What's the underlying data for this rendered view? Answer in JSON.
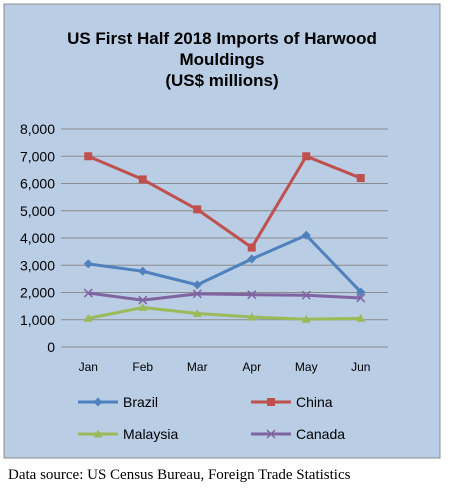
{
  "chart_data": {
    "type": "line",
    "title_lines": [
      "US First Half 2018 Imports of Harwood",
      "Mouldings",
      "(US$ millions)"
    ],
    "categories": [
      "Jan",
      "Feb",
      "Mar",
      "Apr",
      "May",
      "Jun"
    ],
    "ylim": [
      0,
      8000
    ],
    "yticks": [
      "0",
      "1,000",
      "2,000",
      "3,000",
      "4,000",
      "5,000",
      "6,000",
      "7,000",
      "8,000"
    ],
    "grid": true,
    "legend_position": "bottom",
    "series": [
      {
        "name": "Brazil",
        "color": "#4f81bd",
        "marker": "diamond",
        "values": [
          3050,
          2780,
          2280,
          3230,
          4100,
          2020
        ]
      },
      {
        "name": "China",
        "color": "#c0504d",
        "marker": "square",
        "values": [
          7000,
          6150,
          5050,
          3650,
          7000,
          6200
        ]
      },
      {
        "name": "Malaysia",
        "color": "#9bbb59",
        "marker": "triangle",
        "values": [
          1050,
          1450,
          1230,
          1100,
          1020,
          1050
        ]
      },
      {
        "name": "Canada",
        "color": "#8064a2",
        "marker": "x",
        "values": [
          1980,
          1720,
          1950,
          1920,
          1900,
          1800
        ]
      }
    ]
  },
  "source_note": "Data source:  US Census Bureau, Foreign Trade Statistics"
}
